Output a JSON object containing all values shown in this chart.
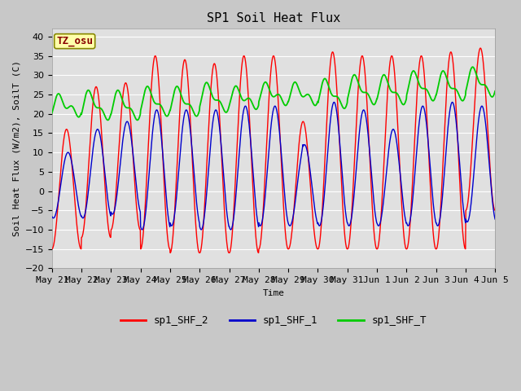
{
  "title": "SP1 Soil Heat Flux",
  "xlabel": "Time",
  "ylabel": "Soil Heat Flux (W/m2), SoilT (C)",
  "ylim": [
    -20,
    42
  ],
  "yticks": [
    -20,
    -15,
    -10,
    -5,
    0,
    5,
    10,
    15,
    20,
    25,
    30,
    35,
    40
  ],
  "fig_bg_color": "#c8c8c8",
  "plot_bg_color": "#e0e0e0",
  "grid_color": "#ffffff",
  "colors": {
    "sp1_SHF_2": "#ff0000",
    "sp1_SHF_1": "#0000cc",
    "sp1_SHF_T": "#00cc00"
  },
  "tz_label": "TZ_osu",
  "tz_box_facecolor": "#ffffaa",
  "tz_box_edgecolor": "#888800",
  "tz_text_color": "#880000",
  "x_tick_labels": [
    "May 21",
    "May 22",
    "May 23",
    "May 24",
    "May 25",
    "May 26",
    "May 27",
    "May 28",
    "May 29",
    "May 30",
    "May 31",
    "Jun 1",
    "Jun 2",
    "Jun 3",
    "Jun 4",
    "Jun 5"
  ],
  "num_days": 15,
  "points_per_day": 96,
  "day_peaks_2": [
    16,
    27,
    28,
    35,
    34,
    33,
    35,
    35,
    18,
    36,
    35,
    35,
    35,
    36,
    37
  ],
  "day_troughs_2": [
    -15,
    -12,
    -10,
    -15,
    -16,
    -16,
    -16,
    -15,
    -15,
    -15,
    -15,
    -15,
    -15,
    -15,
    -5
  ],
  "day_peaks_1": [
    10,
    16,
    18,
    21,
    21,
    21,
    22,
    22,
    12,
    23,
    21,
    16,
    22,
    23,
    22
  ],
  "day_troughs_1": [
    -7,
    -7,
    -6,
    -10,
    -9,
    -10,
    -10,
    -9,
    -9,
    -9,
    -9,
    -9,
    -9,
    -9,
    -8
  ],
  "green_base": [
    22,
    22,
    22,
    23,
    23,
    24,
    24,
    25,
    25,
    25,
    26,
    26,
    27,
    27,
    28
  ],
  "green_amp": [
    2,
    3,
    3,
    3,
    3,
    3,
    2,
    2,
    2,
    3,
    3,
    3,
    3,
    3,
    3
  ],
  "title_fontsize": 11,
  "axis_fontsize": 8,
  "tick_fontsize": 8,
  "legend_fontsize": 9
}
